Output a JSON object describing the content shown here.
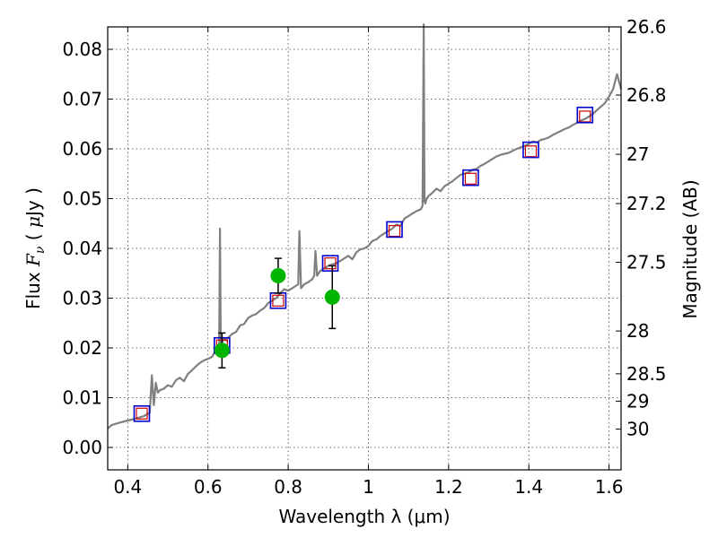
{
  "chart_data": {
    "type": "line",
    "xlabel": "Wavelength  λ (μm)",
    "ylabel": "Flux  F_ν  ( μJy )",
    "ylabel_right": "Magnitude (AB)",
    "xlim": [
      0.35,
      1.63
    ],
    "ylim": [
      -0.0045,
      0.0845
    ],
    "grid": true,
    "x_ticks": [
      {
        "value": 0.4,
        "label": "0.4"
      },
      {
        "value": 0.6,
        "label": "0.6"
      },
      {
        "value": 0.8,
        "label": "0.8"
      },
      {
        "value": 1.0,
        "label": "1"
      },
      {
        "value": 1.2,
        "label": "1.2"
      },
      {
        "value": 1.4,
        "label": "1.4"
      },
      {
        "value": 1.6,
        "label": "1.6"
      }
    ],
    "y_ticks": [
      {
        "value": 0.0,
        "label": "0.00"
      },
      {
        "value": 0.01,
        "label": "0.01"
      },
      {
        "value": 0.02,
        "label": "0.02"
      },
      {
        "value": 0.03,
        "label": "0.03"
      },
      {
        "value": 0.04,
        "label": "0.04"
      },
      {
        "value": 0.05,
        "label": "0.05"
      },
      {
        "value": 0.06,
        "label": "0.06"
      },
      {
        "value": 0.07,
        "label": "0.07"
      },
      {
        "value": 0.08,
        "label": "0.08"
      }
    ],
    "mag_ticks": [
      {
        "label": "26.6",
        "flux": 0.0851
      },
      {
        "label": "26.8",
        "flux": 0.0708
      },
      {
        "label": "27",
        "flux": 0.0589
      },
      {
        "label": "27.2",
        "flux": 0.049
      },
      {
        "label": "27.5",
        "flux": 0.0372
      },
      {
        "label": "28",
        "flux": 0.0234
      },
      {
        "label": "28.5",
        "flux": 0.0148
      },
      {
        "label": "29",
        "flux": 0.0093
      },
      {
        "label": "30",
        "flux": 0.0037
      }
    ],
    "series": [
      {
        "kind": "spectrum",
        "color": "#808080",
        "x": [
          0.35,
          0.36,
          0.38,
          0.4,
          0.42,
          0.44,
          0.455,
          0.46,
          0.465,
          0.47,
          0.475,
          0.48,
          0.49,
          0.5,
          0.51,
          0.52,
          0.53,
          0.54,
          0.55,
          0.56,
          0.57,
          0.58,
          0.59,
          0.6,
          0.61,
          0.62,
          0.628,
          0.63,
          0.632,
          0.635,
          0.64,
          0.645,
          0.65,
          0.66,
          0.67,
          0.68,
          0.69,
          0.7,
          0.71,
          0.72,
          0.73,
          0.74,
          0.75,
          0.76,
          0.77,
          0.78,
          0.79,
          0.8,
          0.81,
          0.82,
          0.825,
          0.828,
          0.832,
          0.84,
          0.85,
          0.86,
          0.865,
          0.868,
          0.872,
          0.88,
          0.89,
          0.9,
          0.91,
          0.92,
          0.93,
          0.94,
          0.95,
          0.96,
          0.97,
          0.98,
          0.99,
          1.0,
          1.01,
          1.02,
          1.03,
          1.04,
          1.05,
          1.06,
          1.07,
          1.08,
          1.09,
          1.1,
          1.11,
          1.12,
          1.13,
          1.135,
          1.138,
          1.14,
          1.142,
          1.145,
          1.15,
          1.16,
          1.17,
          1.18,
          1.19,
          1.2,
          1.21,
          1.22,
          1.23,
          1.24,
          1.25,
          1.26,
          1.27,
          1.28,
          1.29,
          1.3,
          1.31,
          1.32,
          1.33,
          1.34,
          1.35,
          1.36,
          1.37,
          1.38,
          1.39,
          1.4,
          1.41,
          1.42,
          1.43,
          1.44,
          1.45,
          1.46,
          1.47,
          1.48,
          1.49,
          1.5,
          1.51,
          1.52,
          1.53,
          1.54,
          1.55,
          1.56,
          1.57,
          1.58,
          1.59,
          1.6,
          1.61,
          1.62,
          1.63
        ],
        "y": [
          0.0038,
          0.0045,
          0.005,
          0.0054,
          0.0058,
          0.0063,
          0.007,
          0.0145,
          0.0085,
          0.013,
          0.011,
          0.0115,
          0.0118,
          0.0125,
          0.0122,
          0.0135,
          0.014,
          0.0133,
          0.0148,
          0.0155,
          0.0163,
          0.017,
          0.0175,
          0.0178,
          0.0182,
          0.0195,
          0.0205,
          0.044,
          0.02,
          0.021,
          0.022,
          0.0215,
          0.022,
          0.0228,
          0.0232,
          0.0245,
          0.0248,
          0.026,
          0.0265,
          0.0268,
          0.0275,
          0.028,
          0.029,
          0.0295,
          0.03,
          0.031,
          0.0318,
          0.0315,
          0.032,
          0.0325,
          0.0328,
          0.0435,
          0.032,
          0.0328,
          0.0332,
          0.0338,
          0.0345,
          0.0395,
          0.0345,
          0.0355,
          0.036,
          0.0365,
          0.0368,
          0.037,
          0.0375,
          0.038,
          0.0385,
          0.0378,
          0.0392,
          0.0398,
          0.04,
          0.0405,
          0.0415,
          0.0418,
          0.0425,
          0.043,
          0.0435,
          0.044,
          0.0448,
          0.0445,
          0.046,
          0.0465,
          0.047,
          0.0475,
          0.0478,
          0.0485,
          0.085,
          0.0495,
          0.049,
          0.05,
          0.0505,
          0.0512,
          0.052,
          0.0515,
          0.0525,
          0.053,
          0.0535,
          0.0542,
          0.0548,
          0.055,
          0.0553,
          0.0558,
          0.056,
          0.0566,
          0.057,
          0.0575,
          0.058,
          0.0585,
          0.0588,
          0.059,
          0.0592,
          0.0596,
          0.06,
          0.0603,
          0.0606,
          0.061,
          0.0615,
          0.0613,
          0.0618,
          0.062,
          0.0623,
          0.0628,
          0.0632,
          0.0636,
          0.064,
          0.0643,
          0.0648,
          0.0652,
          0.0657,
          0.066,
          0.0665,
          0.067,
          0.0678,
          0.0685,
          0.0692,
          0.0705,
          0.072,
          0.075,
          0.072
        ]
      },
      {
        "kind": "model-points",
        "color": "#cc0000",
        "edge_color": "#cc0000",
        "x": [
          0.435,
          0.635,
          0.775,
          0.905,
          1.065,
          1.255,
          1.405,
          1.54
        ],
        "y": [
          0.0068,
          0.0205,
          0.0295,
          0.037,
          0.0435,
          0.054,
          0.0595,
          0.0665
        ]
      },
      {
        "kind": "filter-points",
        "color": "#0000cc",
        "x": [
          0.435,
          0.635,
          0.775,
          0.905,
          1.065,
          1.255,
          1.405,
          1.54
        ],
        "y": [
          0.0068,
          0.0205,
          0.0295,
          0.037,
          0.0438,
          0.0542,
          0.0598,
          0.0668
        ]
      },
      {
        "kind": "observed",
        "color": "#00b400",
        "x": [
          0.635,
          0.775,
          0.91
        ],
        "y": [
          0.0195,
          0.0345,
          0.0302
        ],
        "yerr": [
          0.0035,
          0.0035,
          0.0063
        ]
      }
    ]
  }
}
